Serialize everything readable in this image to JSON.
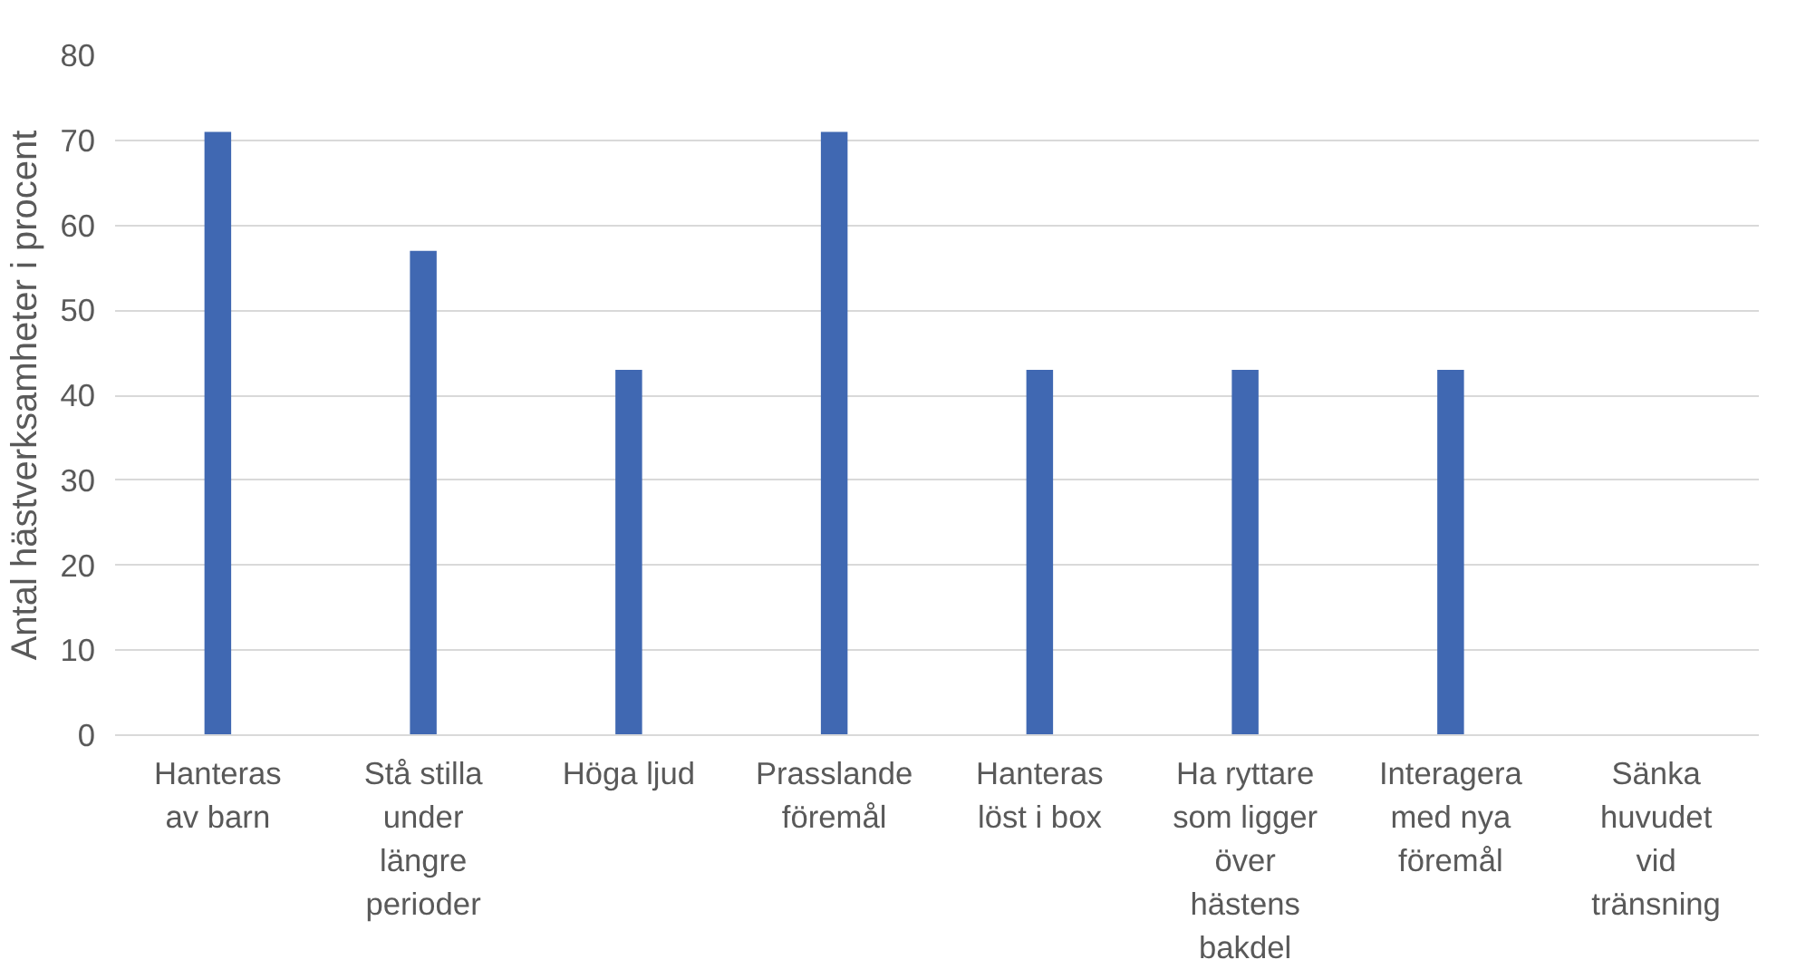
{
  "chart_data": {
    "type": "bar",
    "ylabel": "Antal hästverksamheter i procent",
    "categories": [
      "Hanteras av barn",
      "Stå stilla under längre perioder",
      "Höga ljud",
      "Prasslande föremål",
      "Hanteras löst i box",
      "Ha ryttare som ligger över hästens bakdel",
      "Interagera med nya föremål",
      "Sänka huvudet vid tränsning"
    ],
    "values": [
      71,
      57,
      43,
      71,
      43,
      43,
      43,
      0
    ],
    "color": "#4068b2",
    "ylim": [
      0,
      80
    ],
    "yticks": [
      0,
      10,
      20,
      30,
      40,
      50,
      60,
      70,
      80
    ],
    "grid": "y"
  }
}
